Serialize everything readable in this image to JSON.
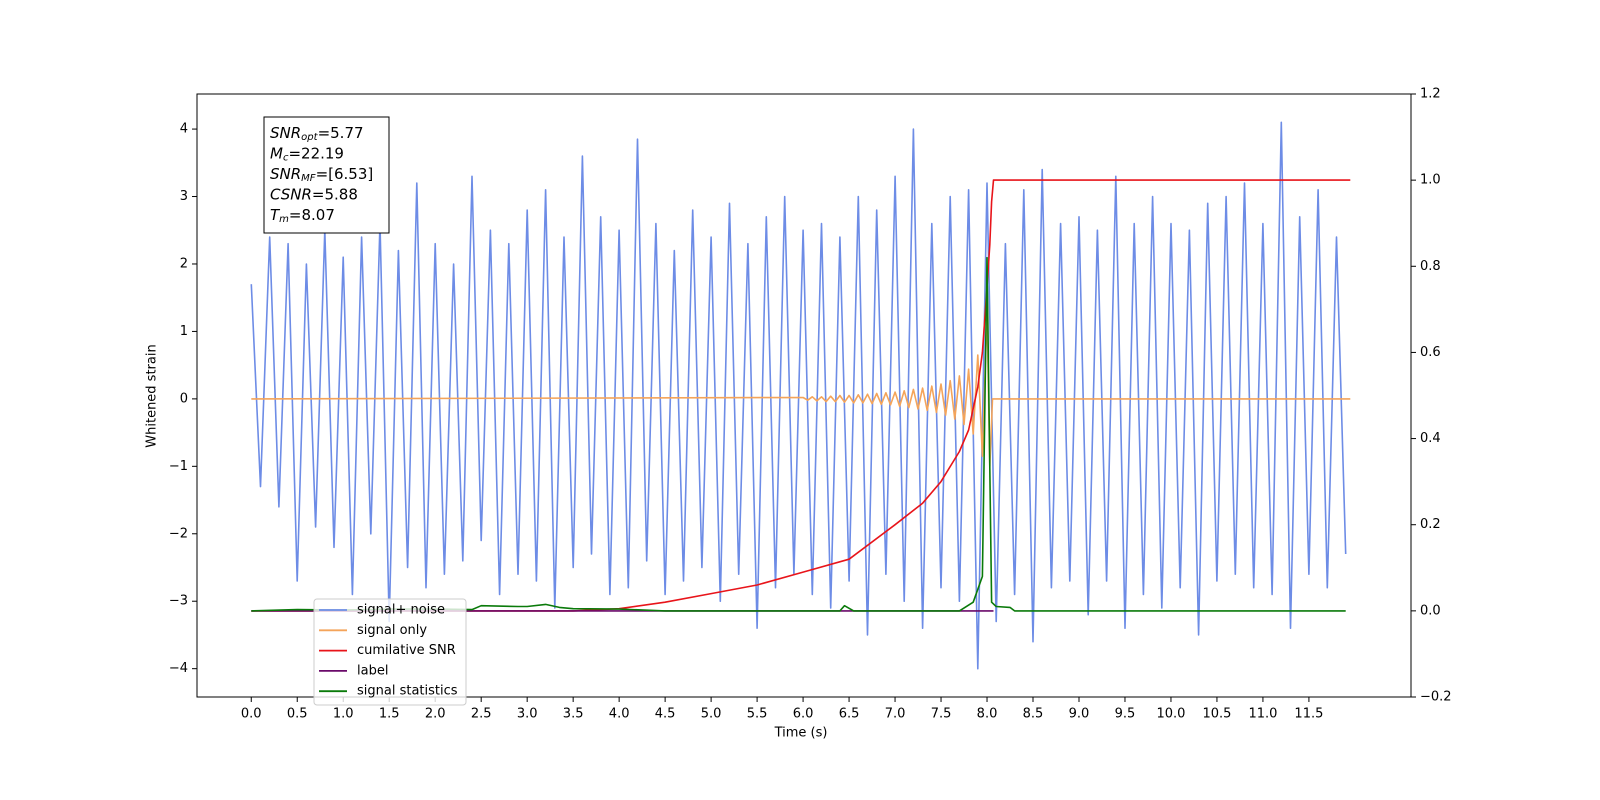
{
  "chart_data": {
    "type": "line",
    "xlabel": "Time (s)",
    "ylabel": "Whitened strain",
    "xlim": [
      -0.59,
      12.61
    ],
    "ylim": [
      -4.42,
      4.52
    ],
    "y2lim": [
      -0.2,
      1.2
    ],
    "xticks": [
      {
        "value": 0,
        "label": "0.0"
      },
      {
        "value": 0.5,
        "label": "0.5"
      },
      {
        "value": 1,
        "label": "1.0"
      },
      {
        "value": 1.5,
        "label": "1.5"
      },
      {
        "value": 2,
        "label": "2.0"
      },
      {
        "value": 2.5,
        "label": "2.5"
      },
      {
        "value": 3,
        "label": "3.0"
      },
      {
        "value": 3.5,
        "label": "3.5"
      },
      {
        "value": 4,
        "label": "4.0"
      },
      {
        "value": 4.5,
        "label": "4.5"
      },
      {
        "value": 5,
        "label": "5.0"
      },
      {
        "value": 5.5,
        "label": "5.5"
      },
      {
        "value": 6,
        "label": "6.0"
      },
      {
        "value": 6.5,
        "label": "6.5"
      },
      {
        "value": 7,
        "label": "7.0"
      },
      {
        "value": 7.5,
        "label": "7.5"
      },
      {
        "value": 8,
        "label": "8.0"
      },
      {
        "value": 8.5,
        "label": "8.5"
      },
      {
        "value": 9,
        "label": "9.0"
      },
      {
        "value": 9.5,
        "label": "9.5"
      },
      {
        "value": 10,
        "label": "10.0"
      },
      {
        "value": 10.5,
        "label": "10.5"
      },
      {
        "value": 11,
        "label": "11.0"
      },
      {
        "value": 11.5,
        "label": "11.5"
      }
    ],
    "yticks": [
      {
        "value": -4,
        "label": "−4"
      },
      {
        "value": -3,
        "label": "−3"
      },
      {
        "value": -2,
        "label": "−2"
      },
      {
        "value": -1,
        "label": "−1"
      },
      0,
      1,
      2,
      3,
      4
    ],
    "y2ticks": [
      {
        "value": -0.2,
        "label": "−0.2"
      },
      {
        "value": 0,
        "label": "0.0"
      },
      {
        "value": 0.2,
        "label": "0.2"
      },
      {
        "value": 0.4,
        "label": "0.4"
      },
      {
        "value": 0.6,
        "label": "0.6"
      },
      {
        "value": 0.8,
        "label": "0.8"
      },
      {
        "value": 1.0,
        "label": "1.0"
      },
      {
        "value": 1.2,
        "label": "1.2"
      }
    ],
    "annotation": [
      {
        "symbol": "SNR",
        "subscript": "opt",
        "text": "=5.77"
      },
      {
        "symbol": "M",
        "subscript": "c",
        "text": "=22.19"
      },
      {
        "symbol": "SNR",
        "subscript": "MF",
        "text": "=[6.53]"
      },
      {
        "symbol": "CSNR",
        "text": "=5.88"
      },
      {
        "symbol": "T",
        "subscript": "m",
        "text": "=8.07"
      }
    ],
    "series": [
      {
        "name": "signal+ noise",
        "color": "#6d8ce6",
        "axis": "y",
        "x": [
          0,
          0.1,
          0.2,
          0.3,
          0.4,
          0.5,
          0.6,
          0.7,
          0.8,
          0.9,
          1,
          1.1,
          1.2,
          1.3,
          1.4,
          1.5,
          1.6,
          1.7,
          1.8,
          1.9,
          2,
          2.1,
          2.2,
          2.3,
          2.4,
          2.5,
          2.6,
          2.7,
          2.8,
          2.9,
          3,
          3.1,
          3.2,
          3.3,
          3.4,
          3.5,
          3.6,
          3.7,
          3.8,
          3.9,
          4,
          4.1,
          4.2,
          4.3,
          4.4,
          4.5,
          4.6,
          4.7,
          4.8,
          4.9,
          5,
          5.1,
          5.2,
          5.3,
          5.4,
          5.5,
          5.6,
          5.7,
          5.8,
          5.9,
          6,
          6.1,
          6.2,
          6.3,
          6.4,
          6.5,
          6.6,
          6.7,
          6.8,
          6.9,
          7,
          7.1,
          7.2,
          7.3,
          7.4,
          7.5,
          7.6,
          7.7,
          7.8,
          7.9,
          8,
          8.1,
          8.2,
          8.3,
          8.4,
          8.5,
          8.6,
          8.7,
          8.8,
          8.9,
          9,
          9.1,
          9.2,
          9.3,
          9.4,
          9.5,
          9.6,
          9.7,
          9.8,
          9.9,
          10,
          10.1,
          10.2,
          10.3,
          10.4,
          10.5,
          10.6,
          10.7,
          10.8,
          10.9,
          11,
          11.1,
          11.2,
          11.3,
          11.4,
          11.5,
          11.6,
          11.7,
          11.8,
          11.9
        ],
        "values": [
          1.7,
          -1.3,
          2.4,
          -1.6,
          2.3,
          -2.7,
          2.0,
          -1.9,
          2.5,
          -2.2,
          2.1,
          -2.9,
          2.4,
          -2.0,
          2.6,
          -3.3,
          2.2,
          -2.5,
          3.2,
          -2.8,
          2.3,
          -2.6,
          2.0,
          -2.4,
          3.3,
          -2.1,
          2.5,
          -2.9,
          2.3,
          -2.6,
          2.8,
          -2.7,
          3.1,
          -3.1,
          2.4,
          -2.5,
          3.6,
          -2.3,
          2.7,
          -2.9,
          2.5,
          -2.8,
          3.85,
          -2.4,
          2.6,
          -2.9,
          2.2,
          -2.7,
          2.8,
          -2.5,
          2.4,
          -3.0,
          2.9,
          -2.6,
          2.3,
          -3.4,
          2.7,
          -2.8,
          3.0,
          -2.6,
          2.5,
          -2.9,
          2.6,
          -3.1,
          2.4,
          -2.7,
          3.0,
          -3.5,
          2.8,
          -2.6,
          3.3,
          -3.0,
          4.0,
          -3.4,
          2.6,
          -2.8,
          3.0,
          -3.0,
          3.1,
          -4.0,
          3.2,
          -3.3,
          2.3,
          -2.9,
          3.1,
          -3.6,
          3.4,
          -2.8,
          2.6,
          -2.7,
          2.7,
          -3.2,
          2.5,
          -2.7,
          3.3,
          -3.4,
          2.6,
          -2.9,
          3.0,
          -3.1,
          2.6,
          -2.8,
          2.5,
          -3.5,
          2.9,
          -2.7,
          3.0,
          -2.6,
          3.2,
          -2.8,
          2.6,
          -2.9,
          4.1,
          -3.4,
          2.7,
          -2.6,
          3.1,
          -2.8,
          2.4,
          -2.3
        ]
      },
      {
        "name": "signal only",
        "color": "#f4a45a",
        "axis": "y",
        "x": [
          0,
          6.0,
          6.05,
          6.1,
          6.15,
          6.2,
          6.25,
          6.3,
          6.35,
          6.4,
          6.45,
          6.5,
          6.55,
          6.6,
          6.65,
          6.7,
          6.75,
          6.8,
          6.85,
          6.9,
          6.95,
          7.0,
          7.05,
          7.1,
          7.15,
          7.2,
          7.25,
          7.3,
          7.35,
          7.4,
          7.45,
          7.5,
          7.55,
          7.6,
          7.65,
          7.7,
          7.75,
          7.8,
          7.85,
          7.9,
          7.95,
          8.0,
          8.03,
          8.06,
          11.95
        ],
        "values": [
          0,
          0.02,
          -0.02,
          0.03,
          -0.03,
          0.03,
          -0.04,
          0.04,
          -0.04,
          0.05,
          -0.05,
          0.05,
          -0.06,
          0.06,
          -0.06,
          0.07,
          -0.07,
          0.08,
          -0.08,
          0.09,
          -0.09,
          0.1,
          -0.11,
          0.12,
          -0.13,
          0.14,
          -0.15,
          0.16,
          -0.17,
          0.19,
          -0.2,
          0.22,
          -0.24,
          0.27,
          -0.3,
          0.34,
          -0.38,
          0.44,
          -0.52,
          0.65,
          -0.85,
          1.3,
          -1.0,
          0,
          0
        ]
      },
      {
        "name": "cumilative SNR",
        "color": "#e8141a",
        "axis": "y2",
        "x": [
          0,
          3.5,
          4.0,
          4.5,
          5.0,
          5.5,
          6.0,
          6.5,
          7.0,
          7.3,
          7.5,
          7.7,
          7.8,
          7.9,
          7.95,
          8.0,
          8.03,
          8.05,
          8.07,
          11.95
        ],
        "values": [
          0,
          0,
          0.005,
          0.02,
          0.04,
          0.06,
          0.09,
          0.12,
          0.2,
          0.25,
          0.3,
          0.37,
          0.42,
          0.52,
          0.6,
          0.75,
          0.85,
          0.95,
          1.0,
          1.0
        ]
      },
      {
        "name": "label",
        "color": "#6a0a6a",
        "axis": "y2",
        "x": [
          0,
          8.07
        ],
        "values": [
          0,
          0
        ]
      },
      {
        "name": "signal statistics",
        "color": "#0a7a0a",
        "axis": "y2",
        "x": [
          0,
          0.5,
          1.0,
          1.5,
          2.0,
          2.4,
          2.5,
          2.9,
          3.0,
          3.2,
          3.35,
          3.5,
          4.0,
          4.5,
          5.5,
          6.4,
          6.45,
          6.55,
          7.7,
          7.85,
          7.95,
          8.0,
          8.05,
          8.1,
          8.25,
          8.3,
          11.9
        ],
        "values": [
          0,
          0.003,
          0.002,
          0.004,
          0.004,
          0.003,
          0.012,
          0.01,
          0.01,
          0.015,
          0.008,
          0.005,
          0.004,
          0,
          0,
          0,
          0.012,
          0,
          0,
          0.02,
          0.08,
          0.82,
          0.02,
          0.01,
          0.008,
          0,
          0
        ]
      }
    ],
    "legend": "lower left"
  }
}
